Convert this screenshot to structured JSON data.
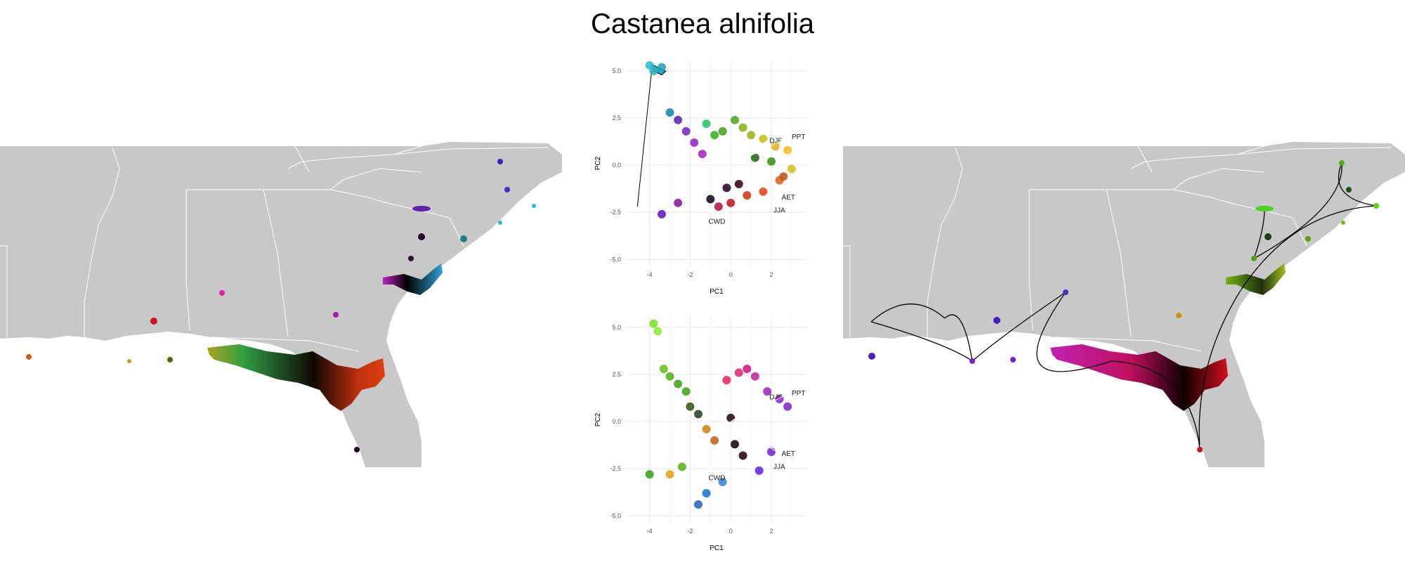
{
  "page": {
    "title": "Castanea alnifolia"
  },
  "chart_data": [
    {
      "type": "scatter",
      "name": "pca-top",
      "x": [
        -4,
        -3.8,
        -3.4,
        -3.0,
        -2.6,
        -2.2,
        -1.8,
        -1.4,
        -1.2,
        -0.8,
        -0.4,
        0.2,
        0.6,
        1.0,
        1.6,
        2.2,
        2.8,
        3.0,
        2.4,
        1.6,
        0.8,
        0.0,
        -0.6,
        -2.6,
        -3.4,
        -1.0,
        -0.2,
        0.4,
        1.2,
        2.0,
        2.6
      ],
      "y": [
        5.3,
        5.0,
        5.2,
        2.8,
        2.4,
        1.8,
        1.2,
        0.6,
        2.2,
        1.6,
        1.8,
        2.4,
        2.0,
        1.6,
        1.4,
        1.0,
        0.8,
        -0.2,
        -0.8,
        -1.4,
        -1.6,
        -2.0,
        -2.2,
        -2.0,
        -2.6,
        -1.8,
        -1.2,
        -1.0,
        0.4,
        0.2,
        -0.6
      ],
      "xlabel": "PC1",
      "ylabel": "PC2",
      "xticks": [
        -4,
        -2,
        0,
        2
      ],
      "yticks": [
        5.0,
        2.5,
        0.0,
        -2.5,
        -5.0
      ],
      "xlim": [
        -5.2,
        3.8
      ],
      "ylim": [
        -5.4,
        5.6
      ],
      "grid": true,
      "legend": "none",
      "loadings": [
        {
          "label": "DJF",
          "x": 1.8,
          "y": 1.3
        },
        {
          "label": "PPT",
          "x": 2.9,
          "y": 1.5
        },
        {
          "label": "AET",
          "x": 2.4,
          "y": -1.7
        },
        {
          "label": "JJA",
          "x": 2.0,
          "y": -2.4
        },
        {
          "label": "CWD",
          "x": -1.2,
          "y": -3.0
        }
      ]
    },
    {
      "type": "scatter",
      "name": "pca-bottom",
      "x": [
        -3.8,
        -3.6,
        -3.3,
        -3.0,
        -2.6,
        -2.2,
        -2.0,
        -1.6,
        -1.2,
        -0.8,
        -0.2,
        0.4,
        0.8,
        1.2,
        1.8,
        2.4,
        2.8,
        0.2,
        0.6,
        1.4,
        2.0,
        -1.6,
        -1.2,
        -0.4,
        -3.0,
        -2.4,
        -4.0,
        0.0
      ],
      "y": [
        5.2,
        4.8,
        2.8,
        2.4,
        2.0,
        1.6,
        0.8,
        0.4,
        -0.4,
        -1.0,
        2.2,
        2.6,
        2.8,
        2.4,
        1.6,
        1.2,
        0.8,
        -1.2,
        -1.8,
        -2.6,
        -1.6,
        -4.4,
        -3.8,
        -3.2,
        -2.8,
        -2.4,
        -2.8,
        0.2
      ],
      "xlabel": "PC1",
      "ylabel": "PC2",
      "xticks": [
        -4,
        -2,
        0,
        2
      ],
      "yticks": [
        5.0,
        2.5,
        0.0,
        -2.5,
        -5.0
      ],
      "xlim": [
        -5.2,
        3.8
      ],
      "ylim": [
        -5.4,
        5.6
      ],
      "grid": true,
      "legend": "none",
      "loadings": [
        {
          "label": "DJF",
          "x": 1.8,
          "y": 1.3
        },
        {
          "label": "PPT",
          "x": 2.9,
          "y": 1.5
        },
        {
          "label": "AET",
          "x": 2.4,
          "y": -1.7
        },
        {
          "label": "JJA",
          "x": 2.0,
          "y": -2.4
        },
        {
          "label": "CWD",
          "x": -1.2,
          "y": -3.0
        }
      ]
    }
  ],
  "colors": {
    "land": "#c8c8c8",
    "boundary": "#ffffff",
    "grid": "#e8e8e8",
    "axis_text": "#555555",
    "hull": "#000000"
  }
}
